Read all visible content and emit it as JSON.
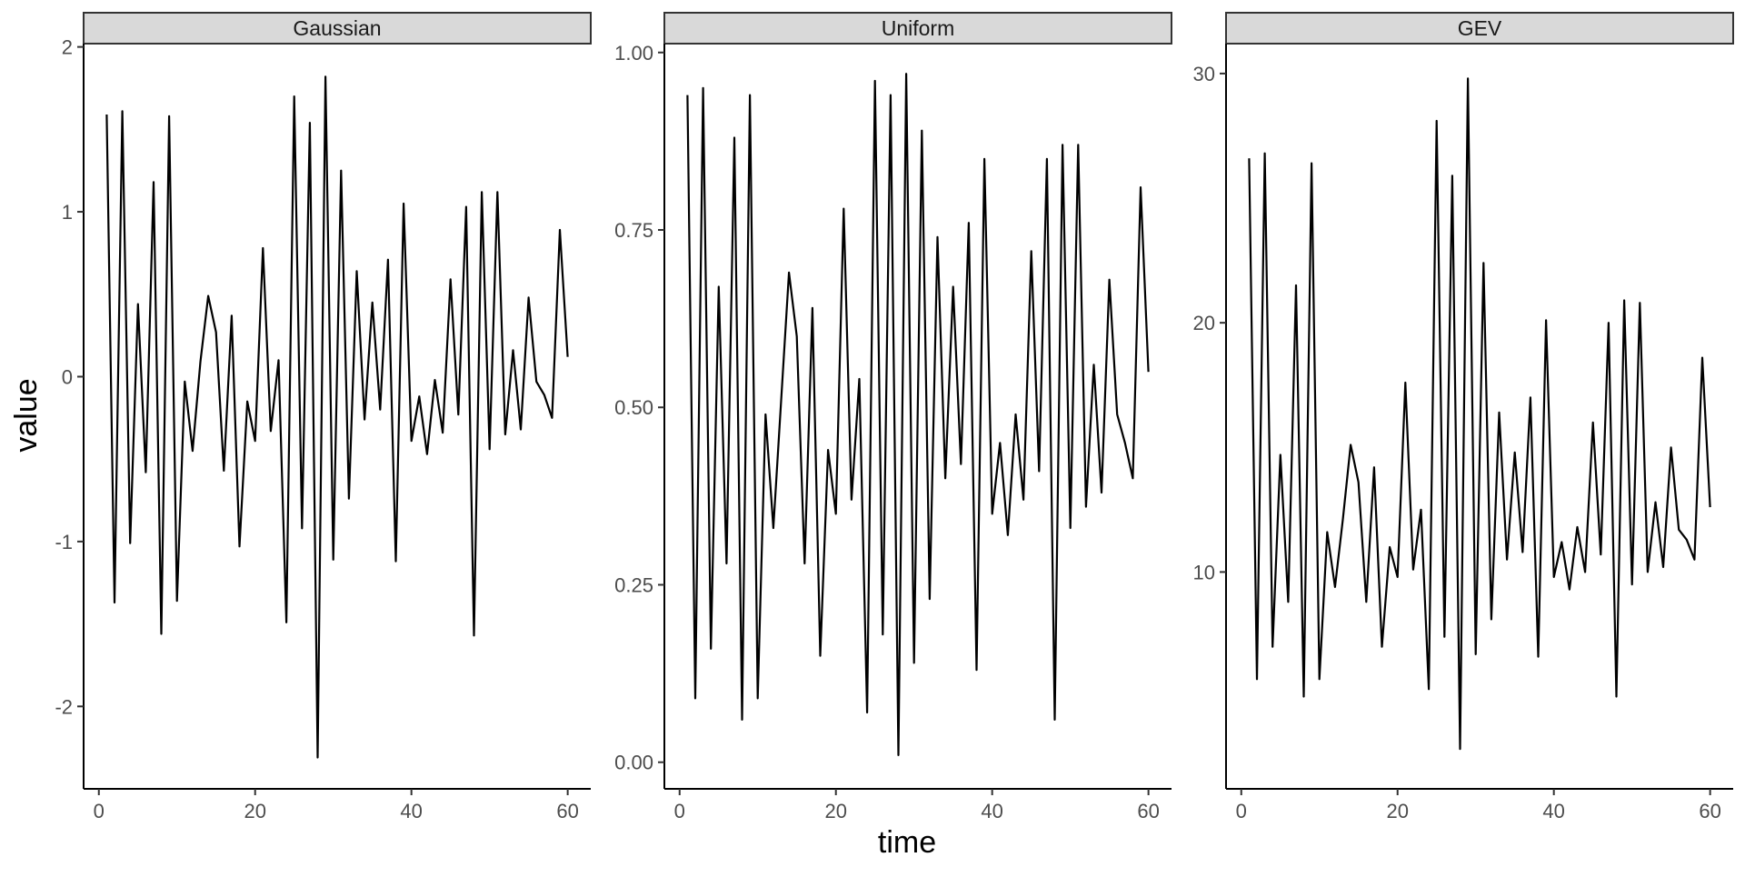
{
  "xlabel": "time",
  "ylabel": "value",
  "chart_data": [
    {
      "type": "line",
      "title": "Gaussian",
      "xlim": [
        -1.95,
        62.95
      ],
      "ylim": [
        -2.5,
        2.02
      ],
      "xticks": [
        0,
        20,
        40,
        60
      ],
      "yticks": [
        -2,
        -1,
        0,
        1,
        2
      ],
      "ytick_labels": [
        "-2",
        "-1",
        "0",
        "1",
        "2"
      ],
      "x": [
        1,
        2,
        3,
        4,
        5,
        6,
        7,
        8,
        9,
        10,
        11,
        12,
        13,
        14,
        15,
        16,
        17,
        18,
        19,
        20,
        21,
        22,
        23,
        24,
        25,
        26,
        27,
        28,
        29,
        30,
        31,
        32,
        33,
        34,
        35,
        36,
        37,
        38,
        39,
        40,
        41,
        42,
        43,
        44,
        45,
        46,
        47,
        48,
        49,
        50,
        51,
        52,
        53,
        54,
        55,
        56,
        57,
        58,
        59,
        60
      ],
      "series": [
        {
          "values": [
            1.59,
            -1.37,
            1.61,
            -1.01,
            0.44,
            -0.58,
            1.18,
            -1.56,
            1.58,
            -1.36,
            -0.03,
            -0.45,
            0.09,
            0.49,
            0.27,
            -0.57,
            0.37,
            -1.03,
            -0.15,
            -0.39,
            0.78,
            -0.33,
            0.1,
            -1.49,
            1.7,
            -0.92,
            1.54,
            -2.31,
            1.82,
            -1.11,
            1.25,
            -0.74,
            0.64,
            -0.26,
            0.45,
            -0.2,
            0.71,
            -1.12,
            1.05,
            -0.39,
            -0.12,
            -0.47,
            -0.02,
            -0.34,
            0.59,
            -0.23,
            1.03,
            -1.57,
            1.12,
            -0.44,
            1.12,
            -0.35,
            0.16,
            -0.32,
            0.48,
            -0.03,
            -0.11,
            -0.25,
            0.89,
            0.12
          ]
        }
      ]
    },
    {
      "type": "line",
      "title": "Uniform",
      "xlim": [
        -1.95,
        62.95
      ],
      "ylim": [
        -0.0375,
        1.0125
      ],
      "xticks": [
        0,
        20,
        40,
        60
      ],
      "yticks": [
        0,
        0.25,
        0.5,
        0.75,
        1.0
      ],
      "ytick_labels": [
        "0.00",
        "0.25",
        "0.50",
        "0.75",
        "1.00"
      ],
      "x": [
        1,
        2,
        3,
        4,
        5,
        6,
        7,
        8,
        9,
        10,
        11,
        12,
        13,
        14,
        15,
        16,
        17,
        18,
        19,
        20,
        21,
        22,
        23,
        24,
        25,
        26,
        27,
        28,
        29,
        30,
        31,
        32,
        33,
        34,
        35,
        36,
        37,
        38,
        39,
        40,
        41,
        42,
        43,
        44,
        45,
        46,
        47,
        48,
        49,
        50,
        51,
        52,
        53,
        54,
        55,
        56,
        57,
        58,
        59,
        60
      ],
      "series": [
        {
          "values": [
            0.94,
            0.09,
            0.95,
            0.16,
            0.67,
            0.28,
            0.88,
            0.06,
            0.94,
            0.09,
            0.49,
            0.33,
            0.51,
            0.69,
            0.6,
            0.28,
            0.64,
            0.15,
            0.44,
            0.35,
            0.78,
            0.37,
            0.54,
            0.07,
            0.96,
            0.18,
            0.94,
            0.01,
            0.97,
            0.14,
            0.89,
            0.23,
            0.74,
            0.4,
            0.67,
            0.42,
            0.76,
            0.13,
            0.85,
            0.35,
            0.45,
            0.32,
            0.49,
            0.37,
            0.72,
            0.41,
            0.85,
            0.06,
            0.87,
            0.33,
            0.87,
            0.36,
            0.56,
            0.38,
            0.68,
            0.49,
            0.45,
            0.4,
            0.81,
            0.55
          ]
        }
      ]
    },
    {
      "type": "line",
      "title": "GEV",
      "xlim": [
        -1.95,
        62.95
      ],
      "ylim": [
        1.3,
        31.2
      ],
      "xticks": [
        0,
        20,
        40,
        60
      ],
      "yticks": [
        10,
        20,
        30
      ],
      "ytick_labels": [
        "10",
        "20",
        "30"
      ],
      "x": [
        1,
        2,
        3,
        4,
        5,
        6,
        7,
        8,
        9,
        10,
        11,
        12,
        13,
        14,
        15,
        16,
        17,
        18,
        19,
        20,
        21,
        22,
        23,
        24,
        25,
        26,
        27,
        28,
        29,
        30,
        31,
        32,
        33,
        34,
        35,
        36,
        37,
        38,
        39,
        40,
        41,
        42,
        43,
        44,
        45,
        46,
        47,
        48,
        49,
        50,
        51,
        52,
        53,
        54,
        55,
        56,
        57,
        58,
        59,
        60
      ],
      "series": [
        {
          "values": [
            26.6,
            5.7,
            26.8,
            7.0,
            14.7,
            8.8,
            21.5,
            5.0,
            26.4,
            5.7,
            11.6,
            9.4,
            12.1,
            15.1,
            13.6,
            8.8,
            14.2,
            7.0,
            11.0,
            9.8,
            17.6,
            10.1,
            12.5,
            5.3,
            28.1,
            7.4,
            25.9,
            2.9,
            29.8,
            6.7,
            22.4,
            8.1,
            16.4,
            10.5,
            14.8,
            10.8,
            17.0,
            6.6,
            20.1,
            9.8,
            11.2,
            9.3,
            11.8,
            10.0,
            16.0,
            10.7,
            20.0,
            5.0,
            20.9,
            9.5,
            20.8,
            10.0,
            12.8,
            10.2,
            15.0,
            11.7,
            11.3,
            10.5,
            18.6,
            12.6
          ]
        }
      ]
    }
  ]
}
